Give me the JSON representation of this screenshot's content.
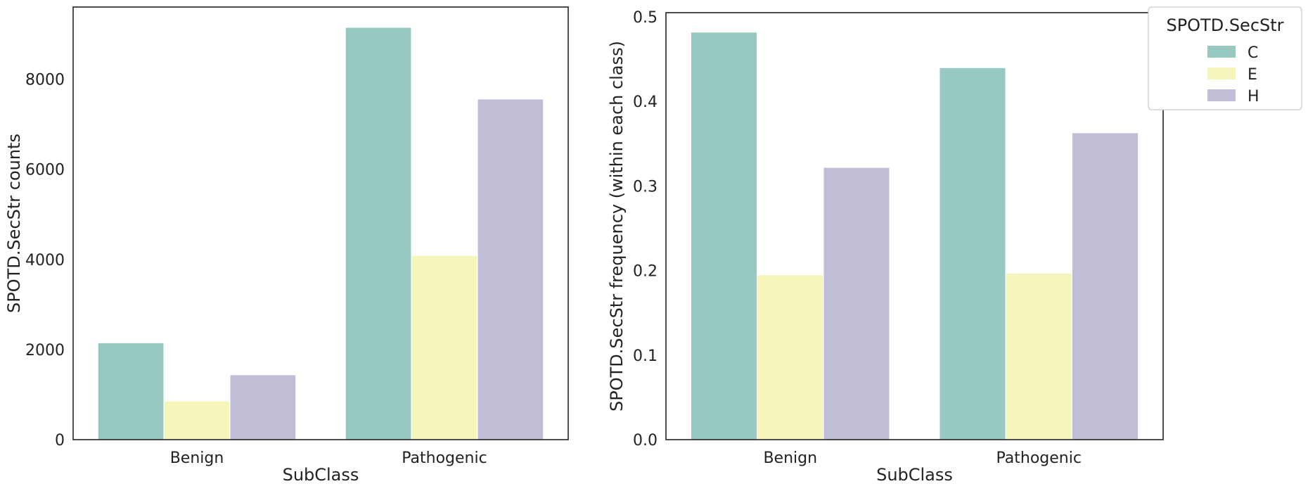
{
  "chart_data": [
    {
      "type": "bar",
      "title": "",
      "xlabel": "SubClass",
      "ylabel": "SPOTD.SecStr counts",
      "categories": [
        "Benign",
        "Pathogenic"
      ],
      "series": [
        {
          "name": "C",
          "color": "#97c9c0",
          "values": [
            2150,
            9150
          ]
        },
        {
          "name": "E",
          "color": "#f6f5bc",
          "values": [
            860,
            4090
          ]
        },
        {
          "name": "H",
          "color": "#c0bdd6",
          "values": [
            1440,
            7560
          ]
        }
      ],
      "ylim": [
        0,
        9600
      ],
      "yticks": [
        0,
        2000,
        4000,
        6000,
        8000
      ],
      "ytick_labels": [
        "0",
        "2000",
        "4000",
        "6000",
        "8000"
      ],
      "grid": false
    },
    {
      "type": "bar",
      "title": "",
      "xlabel": "SubClass",
      "ylabel": "SPOTD.SecStr frequency (within each class)",
      "categories": [
        "Benign",
        "Pathogenic"
      ],
      "series": [
        {
          "name": "C",
          "color": "#97c9c0",
          "values": [
            0.482,
            0.44
          ]
        },
        {
          "name": "E",
          "color": "#f6f5bc",
          "values": [
            0.195,
            0.197
          ]
        },
        {
          "name": "H",
          "color": "#c0bdd6",
          "values": [
            0.322,
            0.363
          ]
        }
      ],
      "ylim": [
        0,
        0.505
      ],
      "yticks": [
        0.0,
        0.1,
        0.2,
        0.3,
        0.4,
        0.5
      ],
      "ytick_labels": [
        "0.0",
        "0.1",
        "0.2",
        "0.3",
        "0.4",
        "0.5"
      ],
      "grid": false
    }
  ],
  "legend": {
    "title": "SPOTD.SecStr",
    "placement": "outside-top-right",
    "entries": [
      {
        "label": "C",
        "color": "#97c9c0"
      },
      {
        "label": "E",
        "color": "#f6f5bc"
      },
      {
        "label": "H",
        "color": "#c0bdd6"
      }
    ]
  }
}
